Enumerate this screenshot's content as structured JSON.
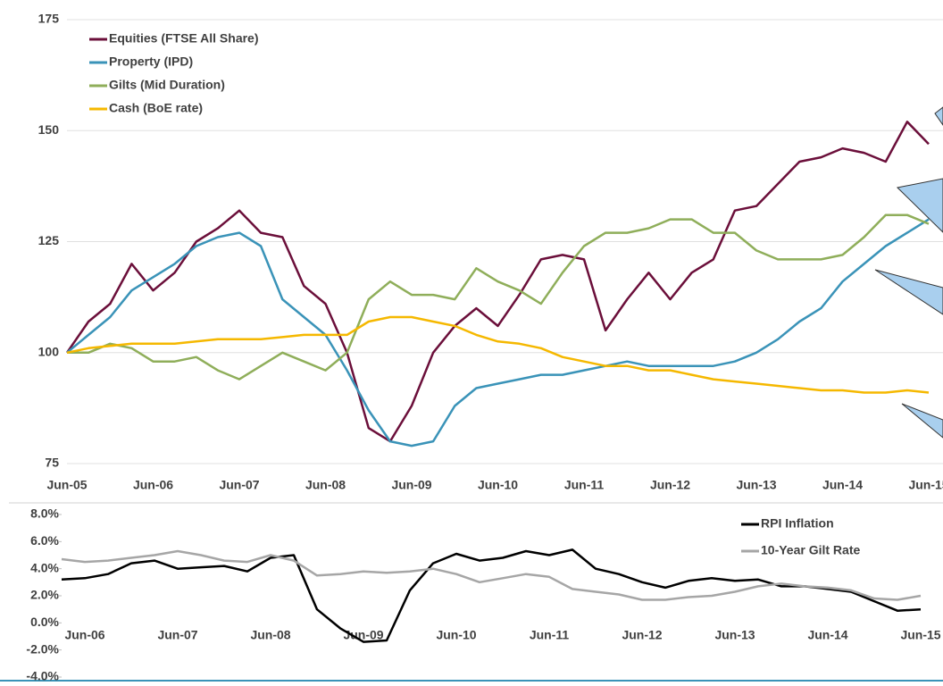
{
  "chart_data": [
    {
      "type": "line",
      "categories": [
        "Jun-05",
        null,
        null,
        null,
        "Jun-06",
        null,
        null,
        null,
        "Jun-07",
        null,
        null,
        null,
        "Jun-08",
        null,
        null,
        null,
        "Jun-09",
        null,
        null,
        null,
        "Jun-10",
        null,
        null,
        null,
        "Jun-11",
        null,
        null,
        null,
        "Jun-12",
        null,
        null,
        null,
        "Jun-13",
        null,
        null,
        null,
        "Jun-14",
        null,
        null,
        null,
        "Jun-15"
      ],
      "series": [
        {
          "name": "Equities (FTSE All Share)",
          "color": "#6b0f3a",
          "values": [
            100,
            107,
            111,
            120,
            114,
            118,
            125,
            128,
            132,
            127,
            126,
            115,
            111,
            100,
            83,
            80,
            88,
            100,
            106,
            110,
            106,
            113,
            121,
            122,
            121,
            105,
            112,
            118,
            112,
            118,
            121,
            132,
            133,
            138,
            143,
            144,
            146,
            145,
            143,
            152,
            147
          ]
        },
        {
          "name": "Property (IPD)",
          "color": "#3a93b8",
          "values": [
            100,
            104,
            108,
            114,
            117,
            120,
            124,
            126,
            127,
            124,
            112,
            108,
            104,
            96,
            87,
            80,
            79,
            80,
            88,
            92,
            93,
            94,
            95,
            95,
            96,
            97,
            98,
            97,
            97,
            97,
            97,
            98,
            100,
            103,
            107,
            110,
            116,
            120,
            124,
            127,
            130
          ]
        },
        {
          "name": "Gilts (Mid Duration)",
          "color": "#8fae5a",
          "values": [
            100,
            100,
            102,
            101,
            98,
            98,
            99,
            96,
            94,
            97,
            100,
            98,
            96,
            100,
            112,
            116,
            113,
            113,
            112,
            119,
            116,
            114,
            111,
            118,
            124,
            127,
            127,
            128,
            130,
            130,
            127,
            127,
            123,
            121,
            121,
            121,
            122,
            126,
            131,
            131,
            129
          ]
        },
        {
          "name": "Cash (BoE rate)",
          "color": "#f5b800",
          "values": [
            100,
            101,
            101.5,
            102,
            102,
            102,
            102.5,
            103,
            103,
            103,
            103.5,
            104,
            104,
            104,
            107,
            108,
            108,
            107,
            106,
            104,
            102.5,
            102,
            101,
            99,
            98,
            97,
            97,
            96,
            96,
            95,
            94,
            93.5,
            93,
            92.5,
            92,
            91.5,
            91.5,
            91,
            91,
            91.5,
            91
          ]
        }
      ],
      "ylim": [
        75,
        175
      ],
      "yticks": [
        75,
        100,
        125,
        150,
        175
      ],
      "grid": true,
      "legend": "upper left"
    },
    {
      "type": "line",
      "categories": [
        null,
        "Jun-06",
        null,
        null,
        null,
        "Jun-07",
        null,
        null,
        null,
        "Jun-08",
        null,
        null,
        null,
        "Jun-09",
        null,
        null,
        null,
        "Jun-10",
        null,
        null,
        null,
        "Jun-11",
        null,
        null,
        null,
        "Jun-12",
        null,
        null,
        null,
        "Jun-13",
        null,
        null,
        null,
        "Jun-14",
        null,
        null,
        null,
        "Jun-15"
      ],
      "series": [
        {
          "name": "RPI Inflation",
          "color": "#000000",
          "values": [
            3.2,
            3.3,
            3.6,
            4.4,
            4.6,
            4.0,
            4.1,
            4.2,
            3.8,
            4.8,
            5.0,
            1.0,
            -0.4,
            -1.4,
            -1.3,
            2.4,
            4.4,
            5.1,
            4.6,
            4.8,
            5.3,
            5.0,
            5.4,
            4.0,
            3.6,
            3.0,
            2.6,
            3.1,
            3.3,
            3.1,
            3.2,
            2.7,
            2.7,
            2.5,
            2.3,
            1.6,
            0.9,
            1.0
          ]
        },
        {
          "name": "10-Year Gilt Rate",
          "color": "#a6a6a6",
          "values": [
            4.7,
            4.5,
            4.6,
            4.8,
            5.0,
            5.3,
            5.0,
            4.6,
            4.5,
            5.0,
            4.6,
            3.5,
            3.6,
            3.8,
            3.7,
            3.8,
            4.0,
            3.6,
            3.0,
            3.3,
            3.6,
            3.4,
            2.5,
            2.3,
            2.1,
            1.7,
            1.7,
            1.9,
            2.0,
            2.3,
            2.7,
            2.9,
            2.7,
            2.6,
            2.4,
            1.8,
            1.7,
            2.0
          ]
        }
      ],
      "ylim": [
        -4,
        8
      ],
      "yticks": [
        {
          "value": -4,
          "label": "-4.0%"
        },
        {
          "value": -2,
          "label": "-2.0%"
        },
        {
          "value": 0,
          "label": "0.0%"
        },
        {
          "value": 2,
          "label": "2.0%"
        },
        {
          "value": 4,
          "label": "4.0%"
        },
        {
          "value": 6,
          "label": "6.0%"
        },
        {
          "value": 8,
          "label": "8.0%"
        }
      ],
      "grid": false,
      "legend": "upper right"
    }
  ]
}
